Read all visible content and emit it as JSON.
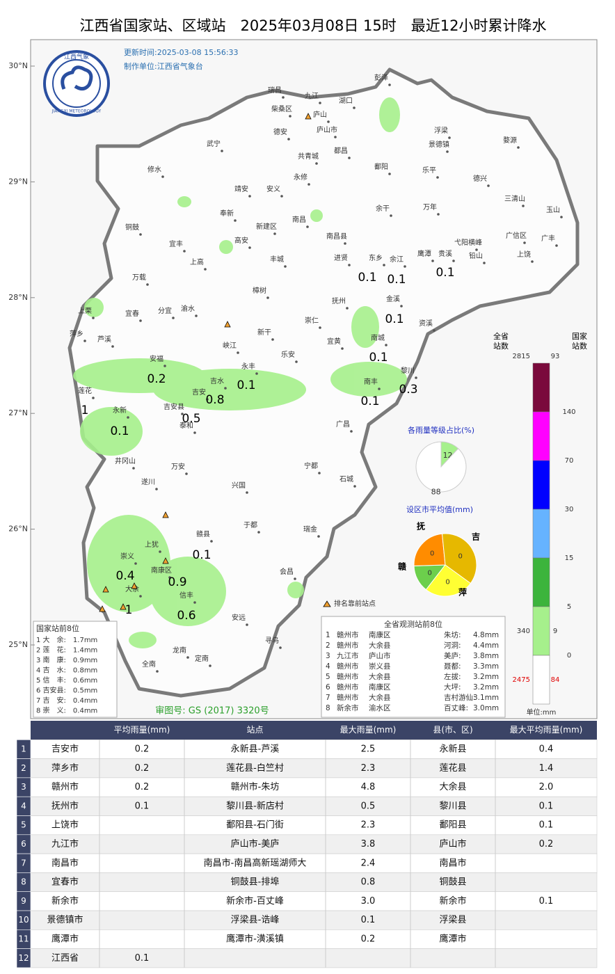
{
  "title": "江西省国家站、区域站　2025年03月08日 15时　最近12小时累计降水",
  "update_time": "更新时间:2025-03-08 15:56:33",
  "producer": "制作单位:江西省气象台",
  "logo": {
    "cn": "江西气象",
    "en": "JIANGXI METEOROLOGY"
  },
  "lat_labels": [
    "30°N",
    "29°N",
    "28°N",
    "27°N",
    "26°N",
    "25°N"
  ],
  "map_labels": [
    "瑞昌",
    "九江",
    "湖口",
    "彭泽",
    "柴桑区",
    "庐山",
    "庐山市",
    "德安",
    "都昌",
    "共青城",
    "武宁",
    "浮梁",
    "景德镇",
    "婺源",
    "修水",
    "鄱阳",
    "乐平",
    "永修",
    "靖安",
    "安义",
    "德兴",
    "三清山",
    "玉山",
    "余干",
    "万年",
    "奉新",
    "南昌",
    "新建区",
    "铜鼓",
    "南昌县",
    "宜丰",
    "高安",
    "弋阳横峰",
    "广信区",
    "上饶",
    "广丰",
    "鹰潭",
    "贵溪",
    "铅山",
    "东乡",
    "余江",
    "进贤",
    "丰城",
    "上高",
    "万载",
    "樟树",
    "金溪",
    "宜春",
    "分宜",
    "渝水",
    "上栗",
    "抚州",
    "崇仁",
    "资溪",
    "萍乡",
    "芦溪",
    "新干",
    "宜黄",
    "峡江",
    "南城",
    "乐安",
    "永丰",
    "安福",
    "黎川",
    "吉水",
    "南丰",
    "莲花",
    "吉安",
    "吉安县",
    "永新",
    "泰和",
    "广昌",
    "井冈山",
    "万安",
    "宁都",
    "遂川",
    "兴国",
    "石城",
    "于都",
    "瑞金",
    "赣县",
    "上犹",
    "崇义",
    "南康区",
    "会昌",
    "大余",
    "信丰",
    "安远",
    "寻乌",
    "龙南",
    "定南",
    "全南"
  ],
  "rain_labels": [
    "0.1",
    "0.1",
    "0.1",
    "0.1",
    "0.1",
    "0.2",
    "0.1",
    "0.3",
    "0.8",
    "0.1",
    "1",
    "0.5",
    "0.1",
    "0.1",
    "0.4",
    "0.9",
    "1",
    "0.6"
  ],
  "marker_legend": "排名靠前站点",
  "legend": {
    "header_all": "全省\n站数",
    "header_national": "国家\n站数",
    "unit": "单位:mm",
    "thresholds": [
      140,
      70,
      30,
      15,
      5,
      0
    ],
    "colors": [
      "#7a0a3c",
      "#ff00ff",
      "#0000ff",
      "#66b3ff",
      "#3cb43c",
      "#a6f08c",
      "#ffffff"
    ],
    "counts": [
      {
        "all": 2815,
        "national": 93
      },
      {
        "all": 340,
        "national": 9
      },
      {
        "all": 2475,
        "national": 84
      }
    ]
  },
  "pie": {
    "title": "各雨量等级占比(%)",
    "values": [
      12,
      88
    ],
    "colors": [
      "#a6f08c",
      "#ffffff"
    ]
  },
  "city_pie": {
    "title": "设区市平均值(mm)",
    "labels": [
      "抚",
      "吉",
      "萍",
      "赣"
    ],
    "values": [
      0,
      0,
      0,
      0
    ],
    "colors": [
      "#6ccf4c",
      "#ff8c00",
      "#e6b800",
      "#ffff33"
    ]
  },
  "national_top": {
    "title": "国家站前8位",
    "rows": [
      "1 大　余:　1.7mm",
      "2 莲　花:　1.4mm",
      "3 南　康:　0.9mm",
      "4 吉　水:　0.8mm",
      "5 信　丰:　0.6mm",
      "6 吉安县:　0.5mm",
      "7 吉　安:　0.4mm",
      "8 崇　义:　0.4mm"
    ]
  },
  "province_top": {
    "title": "全省观测站前8位",
    "rows": [
      [
        "1",
        "赣州市",
        "南康区",
        "朱坊:",
        "4.8mm"
      ],
      [
        "2",
        "赣州市",
        "大余县",
        "河洞:",
        "4.4mm"
      ],
      [
        "3",
        "九江市",
        "庐山市",
        "美庐:",
        "3.8mm"
      ],
      [
        "4",
        "赣州市",
        "崇义县",
        "聂都:",
        "3.3mm"
      ],
      [
        "5",
        "赣州市",
        "大余县",
        "左拔:",
        "3.2mm"
      ],
      [
        "6",
        "赣州市",
        "南康区",
        "大坪:",
        "3.2mm"
      ],
      [
        "7",
        "赣州市",
        "大余县",
        "吉村游仙:",
        "3.1mm"
      ],
      [
        "8",
        "新余市",
        "渝水区",
        "百丈峰:",
        "3.0mm"
      ]
    ]
  },
  "review": "审图号: GS (2017) 3320号",
  "table": {
    "header": [
      "平均雨量(mm)",
      "站点",
      "最大雨量(mm)",
      "县(市、区)",
      "最大平均雨量(mm)"
    ],
    "rows": [
      [
        "1",
        "吉安市",
        "0.2",
        "永新县-芦溪",
        "2.5",
        "永新县",
        "0.4"
      ],
      [
        "2",
        "萍乡市",
        "0.2",
        "莲花县-白竺村",
        "2.3",
        "莲花县",
        "1.4"
      ],
      [
        "3",
        "赣州市",
        "0.2",
        "赣州市-朱坊",
        "4.8",
        "大余县",
        "2.0"
      ],
      [
        "4",
        "抚州市",
        "0.1",
        "黎川县-新店村",
        "0.5",
        "黎川县",
        "0.1"
      ],
      [
        "5",
        "上饶市",
        null,
        "鄱阳县-石门街",
        "2.3",
        "鄱阳县",
        "0.1"
      ],
      [
        "6",
        "九江市",
        null,
        "庐山市-美庐",
        "3.8",
        "庐山市",
        "0.2"
      ],
      [
        "7",
        "南昌市",
        null,
        "南昌市-南昌高新瑶湖师大",
        "2.4",
        "南昌市",
        null
      ],
      [
        "8",
        "宜春市",
        null,
        "铜鼓县-排埠",
        "0.8",
        "铜鼓县",
        null
      ],
      [
        "9",
        "新余市",
        null,
        "新余市-百丈峰",
        "3.0",
        "新余市",
        "0.1"
      ],
      [
        "10",
        "景德镇市",
        null,
        "浮梁县-诰峰",
        "0.1",
        "浮梁县",
        null
      ],
      [
        "11",
        "鹰潭市",
        null,
        "鹰潭市-潢溪镇",
        "0.2",
        "鹰潭市",
        null
      ],
      [
        "12",
        "江西省",
        "0.1",
        null,
        null,
        null,
        null
      ]
    ]
  }
}
